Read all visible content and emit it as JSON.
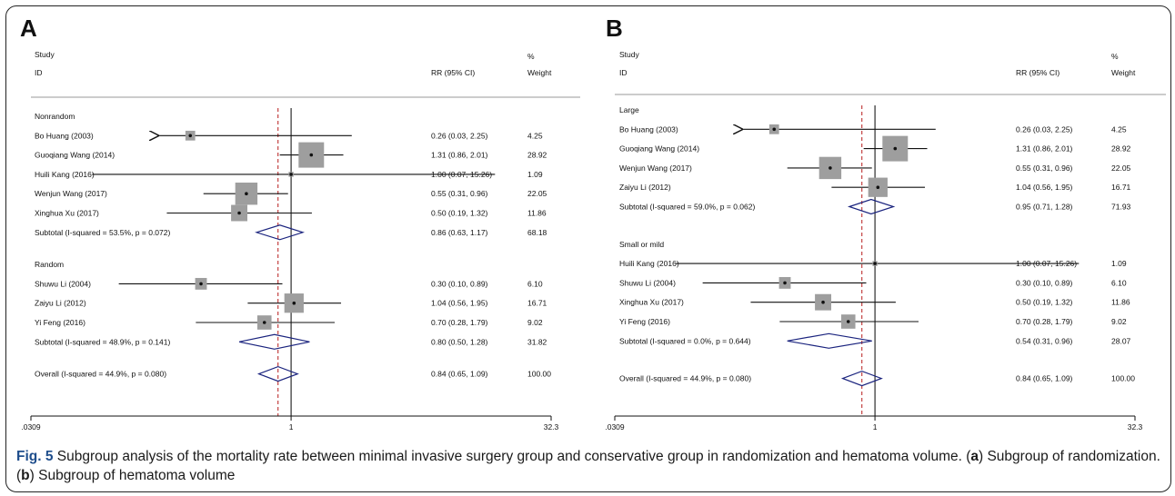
{
  "chart_data": [
    {
      "type": "forest",
      "panel_label": "A",
      "header": {
        "study_1": "Study",
        "study_2": "ID",
        "rr": "RR (95% CI)",
        "weight_1": "%",
        "weight_2": "Weight"
      },
      "x_axis": {
        "scale": "log",
        "ticks": [
          0.0309,
          1,
          32.3
        ],
        "tick_labels": [
          ".0309",
          "1",
          "32.3"
        ],
        "range": [
          0.0309,
          32.3
        ]
      },
      "overall_effect_line": 0.84,
      "rows": [
        {
          "kind": "group",
          "label": "Nonrandom"
        },
        {
          "kind": "study",
          "label": "Bo Huang (2003)",
          "rr": 0.26,
          "lo": 0.03,
          "hi": 2.25,
          "rr_text": "0.26 (0.03, 2.25)",
          "weight": "4.25",
          "arrow_left": true
        },
        {
          "kind": "study",
          "label": "Guoqiang Wang (2014)",
          "rr": 1.31,
          "lo": 0.86,
          "hi": 2.01,
          "rr_text": "1.31 (0.86, 2.01)",
          "weight": "28.92"
        },
        {
          "kind": "study",
          "label": "Huili Kang (2016)",
          "rr": 1.0,
          "lo": 0.07,
          "hi": 15.26,
          "rr_text": "1.00 (0.07, 15.26)",
          "weight": "1.09"
        },
        {
          "kind": "study",
          "label": "Wenjun Wang (2017)",
          "rr": 0.55,
          "lo": 0.31,
          "hi": 0.96,
          "rr_text": "0.55 (0.31, 0.96)",
          "weight": "22.05"
        },
        {
          "kind": "study",
          "label": "Xinghua Xu (2017)",
          "rr": 0.5,
          "lo": 0.19,
          "hi": 1.32,
          "rr_text": "0.50 (0.19, 1.32)",
          "weight": "11.86"
        },
        {
          "kind": "subtotal",
          "label": "Subtotal  (I-squared = 53.5%, p = 0.072)",
          "rr": 0.86,
          "lo": 0.63,
          "hi": 1.17,
          "rr_text": "0.86 (0.63, 1.17)",
          "weight": "68.18"
        },
        {
          "kind": "gap"
        },
        {
          "kind": "group",
          "label": "Random"
        },
        {
          "kind": "study",
          "label": "Shuwu Li (2004)",
          "rr": 0.3,
          "lo": 0.1,
          "hi": 0.89,
          "rr_text": "0.30 (0.10, 0.89)",
          "weight": "6.10"
        },
        {
          "kind": "study",
          "label": "Zaiyu Li  (2012)",
          "rr": 1.04,
          "lo": 0.56,
          "hi": 1.95,
          "rr_text": "1.04 (0.56, 1.95)",
          "weight": "16.71"
        },
        {
          "kind": "study",
          "label": "Yi Feng (2016)",
          "rr": 0.7,
          "lo": 0.28,
          "hi": 1.79,
          "rr_text": "0.70 (0.28, 1.79)",
          "weight": "9.02"
        },
        {
          "kind": "subtotal",
          "label": "Subtotal  (I-squared = 48.9%, p = 0.141)",
          "rr": 0.8,
          "lo": 0.5,
          "hi": 1.28,
          "rr_text": "0.80 (0.50, 1.28)",
          "weight": "31.82"
        },
        {
          "kind": "gap"
        },
        {
          "kind": "overall",
          "label": "Overall  (I-squared = 44.9%, p = 0.080)",
          "rr": 0.84,
          "lo": 0.65,
          "hi": 1.09,
          "rr_text": "0.84 (0.65, 1.09)",
          "weight": "100.00"
        }
      ]
    },
    {
      "type": "forest",
      "panel_label": "B",
      "header": {
        "study_1": "Study",
        "study_2": "ID",
        "rr": "RR (95% CI)",
        "weight_1": "%",
        "weight_2": "Weight"
      },
      "x_axis": {
        "scale": "log",
        "ticks": [
          0.0309,
          1,
          32.3
        ],
        "tick_labels": [
          ".0309",
          "1",
          "32.3"
        ],
        "range": [
          0.0309,
          32.3
        ]
      },
      "overall_effect_line": 0.84,
      "rows": [
        {
          "kind": "group",
          "label": "Large"
        },
        {
          "kind": "study",
          "label": "Bo Huang (2003)",
          "rr": 0.26,
          "lo": 0.03,
          "hi": 2.25,
          "rr_text": "0.26 (0.03, 2.25)",
          "weight": "4.25",
          "arrow_left": true
        },
        {
          "kind": "study",
          "label": "Guoqiang Wang (2014)",
          "rr": 1.31,
          "lo": 0.86,
          "hi": 2.01,
          "rr_text": "1.31 (0.86, 2.01)",
          "weight": "28.92"
        },
        {
          "kind": "study",
          "label": "Wenjun Wang (2017)",
          "rr": 0.55,
          "lo": 0.31,
          "hi": 0.96,
          "rr_text": "0.55 (0.31, 0.96)",
          "weight": "22.05"
        },
        {
          "kind": "study",
          "label": "Zaiyu Li  (2012)",
          "rr": 1.04,
          "lo": 0.56,
          "hi": 1.95,
          "rr_text": "1.04 (0.56, 1.95)",
          "weight": "16.71"
        },
        {
          "kind": "subtotal",
          "label": "Subtotal  (I-squared = 59.0%, p = 0.062)",
          "rr": 0.95,
          "lo": 0.71,
          "hi": 1.28,
          "rr_text": "0.95 (0.71, 1.28)",
          "weight": "71.93"
        },
        {
          "kind": "gap"
        },
        {
          "kind": "group",
          "label": "Small or mild"
        },
        {
          "kind": "study",
          "label": "Huili Kang (2016)",
          "rr": 1.0,
          "lo": 0.07,
          "hi": 15.26,
          "rr_text": "1.00 (0.07, 15.26)",
          "weight": "1.09"
        },
        {
          "kind": "study",
          "label": "Shuwu Li (2004)",
          "rr": 0.3,
          "lo": 0.1,
          "hi": 0.89,
          "rr_text": "0.30 (0.10, 0.89)",
          "weight": "6.10"
        },
        {
          "kind": "study",
          "label": "Xinghua Xu (2017)",
          "rr": 0.5,
          "lo": 0.19,
          "hi": 1.32,
          "rr_text": "0.50 (0.19, 1.32)",
          "weight": "11.86"
        },
        {
          "kind": "study",
          "label": "Yi Feng (2016)",
          "rr": 0.7,
          "lo": 0.28,
          "hi": 1.79,
          "rr_text": "0.70 (0.28, 1.79)",
          "weight": "9.02"
        },
        {
          "kind": "subtotal",
          "label": "Subtotal  (I-squared = 0.0%, p = 0.644)",
          "rr": 0.54,
          "lo": 0.31,
          "hi": 0.96,
          "rr_text": "0.54 (0.31, 0.96)",
          "weight": "28.07"
        },
        {
          "kind": "gap"
        },
        {
          "kind": "overall",
          "label": "Overall  (I-squared = 44.9%, p = 0.080)",
          "rr": 0.84,
          "lo": 0.65,
          "hi": 1.09,
          "rr_text": "0.84 (0.65, 1.09)",
          "weight": "100.00"
        }
      ]
    }
  ],
  "caption": {
    "fig_label": "Fig. 5",
    "part1": " Subgroup analysis of the mortality rate between minimal invasive surgery group and conservative group in randomization and hematoma volume. (",
    "a": "a",
    "part2": ") Subgroup of randomization. (",
    "b": "b",
    "part3": ") Subgroup of hematoma volume"
  },
  "colors": {
    "diamond": "#1a237e",
    "null_line": "#000000",
    "effect_line": "#b71c1c",
    "box": "#9e9e9e"
  }
}
